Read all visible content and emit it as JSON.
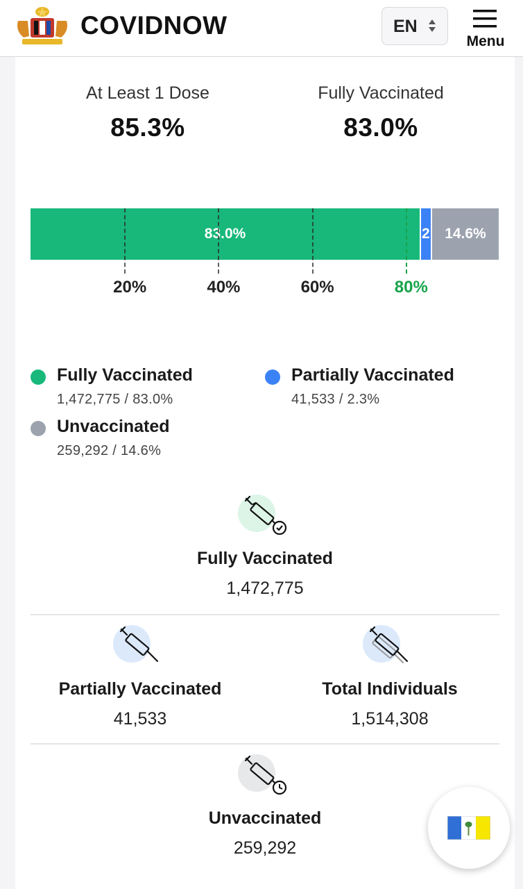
{
  "header": {
    "brand": "COVIDNOW",
    "language": "EN",
    "menu_label": "Menu",
    "logo_icon": "malaysia-coat-of-arms"
  },
  "doses": {
    "at_least_one": {
      "label": "At Least 1 Dose",
      "value": "85.3%"
    },
    "fully": {
      "label": "Fully Vaccinated",
      "value": "83.0%"
    }
  },
  "chart_data": {
    "type": "bar",
    "orientation": "horizontal-stacked",
    "series": [
      {
        "name": "Fully Vaccinated",
        "value": 83.0,
        "label": "83.0%",
        "color": "#18b87a"
      },
      {
        "name": "Partially Vaccinated",
        "value": 2.3,
        "label": "2",
        "color": "#3b82f6"
      },
      {
        "name": "Unvaccinated",
        "value": 14.6,
        "label": "14.6%",
        "color": "#9ca3af"
      }
    ],
    "xlim": [
      0,
      100
    ],
    "ticks": [
      {
        "value": 20,
        "label": "20%",
        "highlight": false
      },
      {
        "value": 40,
        "label": "40%",
        "highlight": false
      },
      {
        "value": 60,
        "label": "60%",
        "highlight": false
      },
      {
        "value": 80,
        "label": "80%",
        "highlight": true
      }
    ],
    "highlight_color": "#16a34a"
  },
  "legend": [
    {
      "name": "Fully Vaccinated",
      "value": "1,472,775 / 83.0%",
      "color": "#18b87a"
    },
    {
      "name": "Partially Vaccinated",
      "value": "41,533 / 2.3%",
      "color": "#3b82f6"
    },
    {
      "name": "Unvaccinated",
      "value": "259,292 / 14.6%",
      "color": "#9ca3af"
    }
  ],
  "stats": {
    "fully": {
      "name": "Fully Vaccinated",
      "value": "1,472,775",
      "icon": "syringe-check-icon",
      "color": "#dcf5e7"
    },
    "partial": {
      "name": "Partially Vaccinated",
      "value": "41,533",
      "icon": "syringe-icon",
      "color": "#dbe9fb"
    },
    "total": {
      "name": "Total Individuals",
      "value": "1,514,308",
      "icon": "syringe-stack-icon",
      "color": "#dbe9fb"
    },
    "unvax": {
      "name": "Unvaccinated",
      "value": "259,292",
      "icon": "syringe-clock-icon",
      "color": "#e7e8ea"
    }
  },
  "fab": {
    "icon": "state-flag-icon"
  }
}
